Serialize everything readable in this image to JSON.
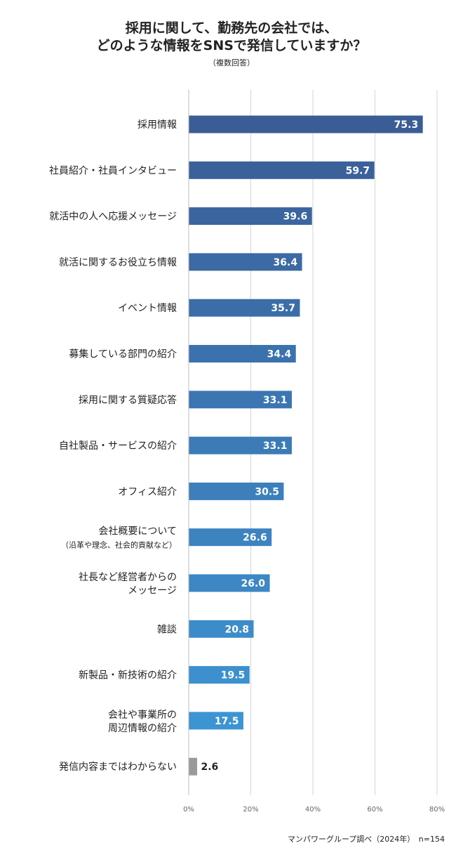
{
  "title": {
    "line1": "採用に関して、勤務先の会社では、",
    "line2": "どのような情報をSNSで発信していますか？",
    "subtitle": "（複数回答）"
  },
  "source": "マンパワーグループ調べ（2024年）　n=154",
  "colors": {
    "bar_top": "#3b5d96",
    "bar_bottom": "#3c94d2",
    "bar_other": "#9a9a9a",
    "grid": "#d6d6d6"
  },
  "chart_data": {
    "type": "bar",
    "orientation": "horizontal",
    "unit": "%",
    "xlim": [
      0,
      80
    ],
    "xticks": [
      "0%",
      "20%",
      "40%",
      "60%",
      "80%"
    ],
    "grid": true,
    "categories": [
      [
        "採用情報"
      ],
      [
        "社員紹介・社員インタビュー"
      ],
      [
        "就活中の人へ応援メッセージ"
      ],
      [
        "就活に関するお役立ち情報"
      ],
      [
        "イベント情報"
      ],
      [
        "募集している部門の紹介"
      ],
      [
        "採用に関する質疑応答"
      ],
      [
        "自社製品・サービスの紹介"
      ],
      [
        "オフィス紹介"
      ],
      [
        "会社概要について",
        "（沿革や理念、社会的貢献など）"
      ],
      [
        "社長など経営者からの",
        "メッセージ"
      ],
      [
        "雑談"
      ],
      [
        "新製品・新技術の紹介"
      ],
      [
        "会社や事業所の",
        "周辺情報の紹介"
      ],
      [
        "発信内容まではわからない"
      ]
    ],
    "values": [
      75.3,
      59.7,
      39.6,
      36.4,
      35.7,
      34.4,
      33.1,
      33.1,
      30.5,
      26.6,
      26.0,
      20.8,
      19.5,
      17.5,
      2.6
    ],
    "value_labels": [
      "75.3",
      "59.7",
      "39.6",
      "36.4",
      "35.7",
      "34.4",
      "33.1",
      "33.1",
      "30.5",
      "26.6",
      "26.0",
      "20.8",
      "19.5",
      "17.5",
      "2.6"
    ]
  }
}
